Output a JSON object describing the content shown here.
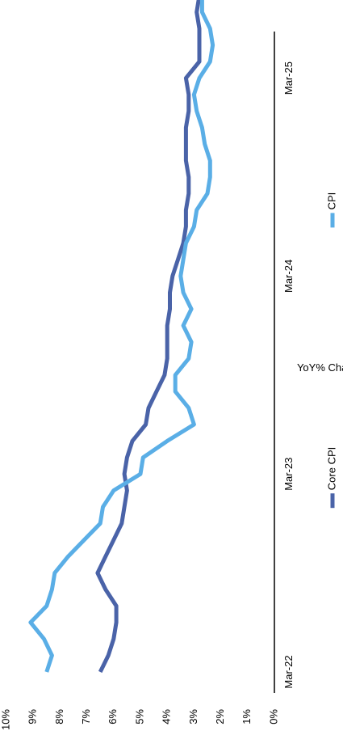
{
  "chart_data": {
    "type": "line",
    "ylabel": "YoY% Change",
    "ylim": [
      0,
      10
    ],
    "y_ticks": [
      "0%",
      "1%",
      "2%",
      "3%",
      "4%",
      "5%",
      "6%",
      "7%",
      "8%",
      "9%",
      "10%"
    ],
    "x_ticks": [
      {
        "month_index": 0,
        "label": "Mar-22"
      },
      {
        "month_index": 12,
        "label": "Mar-23"
      },
      {
        "month_index": 24,
        "label": "Mar-24"
      },
      {
        "month_index": 36,
        "label": "Mar-25"
      }
    ],
    "x_start": "Mar-22",
    "x_end": "Jun-25",
    "grid": false,
    "legend": {
      "position": "bottom"
    },
    "series": [
      {
        "name": "Core CPI",
        "color": "#4a63a8",
        "values": [
          6.5,
          6.2,
          6.0,
          5.9,
          5.9,
          6.3,
          6.6,
          6.3,
          6.0,
          5.7,
          5.6,
          5.5,
          5.6,
          5.5,
          5.3,
          4.8,
          4.7,
          4.4,
          4.1,
          4.0,
          4.0,
          4.0,
          3.9,
          3.9,
          3.8,
          3.6,
          3.4,
          3.3,
          3.3,
          3.2,
          3.2,
          3.3,
          3.3,
          3.3,
          3.2,
          3.2,
          3.3,
          2.8,
          2.8,
          2.8,
          2.9,
          2.8
        ]
      },
      {
        "name": "CPI",
        "color": "#5aaee6",
        "values": [
          8.5,
          8.3,
          8.6,
          9.1,
          8.5,
          8.3,
          8.2,
          7.7,
          7.1,
          6.5,
          6.4,
          6.0,
          5.0,
          4.9,
          4.0,
          3.0,
          3.2,
          3.7,
          3.7,
          3.2,
          3.1,
          3.4,
          3.1,
          3.4,
          3.5,
          3.4,
          3.3,
          3.0,
          2.9,
          2.5,
          2.4,
          2.4,
          2.6,
          2.7,
          2.9,
          3.0,
          2.8,
          2.4,
          2.3,
          2.4,
          2.7,
          2.7
        ]
      }
    ]
  }
}
